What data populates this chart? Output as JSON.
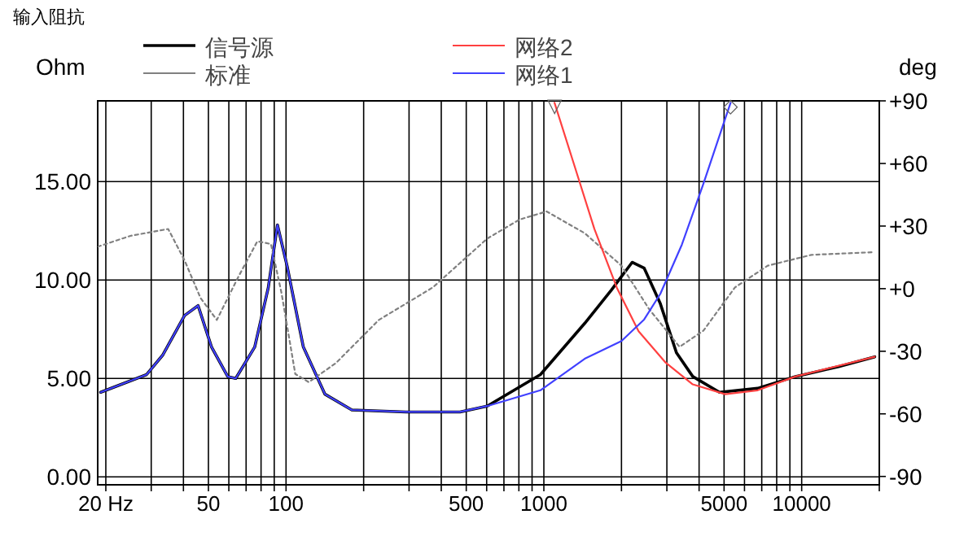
{
  "chart_data": {
    "type": "line",
    "title": "输入阻抗",
    "ylabel": "Ohm",
    "y2label": "deg",
    "log": "x",
    "grid": true,
    "legend": "top",
    "xlim": [
      18.6,
      20000
    ],
    "ylim": [
      -0.4,
      19.1
    ],
    "y2lim": [
      -94,
      90
    ],
    "xticks": [
      {
        "value": 20,
        "label": "20 Hz"
      },
      {
        "value": 30,
        "label": null
      },
      {
        "value": 40,
        "label": null
      },
      50,
      {
        "value": 60,
        "label": null
      },
      {
        "value": 70,
        "label": null
      },
      {
        "value": 80,
        "label": null
      },
      {
        "value": 90,
        "label": null
      },
      100,
      {
        "value": 200,
        "label": null
      },
      {
        "value": 300,
        "label": null
      },
      {
        "value": 400,
        "label": null
      },
      500,
      {
        "value": 600,
        "label": null
      },
      {
        "value": 700,
        "label": null
      },
      {
        "value": 800,
        "label": null
      },
      {
        "value": 900,
        "label": null
      },
      1000,
      {
        "value": 2000,
        "label": null
      },
      {
        "value": 3000,
        "label": null
      },
      {
        "value": 4000,
        "label": null
      },
      5000,
      {
        "value": 6000,
        "label": null
      },
      {
        "value": 7000,
        "label": null
      },
      {
        "value": 8000,
        "label": null
      },
      {
        "value": 9000,
        "label": null
      },
      10000,
      {
        "value": 20000,
        "label": null
      }
    ],
    "yticks": [
      {
        "value": 0,
        "label": "0.00"
      },
      {
        "value": 5,
        "label": "5.00"
      },
      {
        "value": 10,
        "label": "10.00"
      },
      {
        "value": 15,
        "label": "15.00"
      }
    ],
    "y2ticks": [
      {
        "value": 90,
        "label": "+90"
      },
      {
        "value": 60,
        "label": "+60"
      },
      {
        "value": 30,
        "label": "+30"
      },
      {
        "value": 0,
        "label": "+0"
      },
      -30,
      -60,
      -90
    ],
    "series": [
      {
        "name": "信号源",
        "color": "#000000",
        "line_style": "solid",
        "x": [
          19.1,
          28.8,
          33.3,
          40.4,
          45.6,
          51.4,
          59.4,
          63.8,
          75.6,
          85.3,
          92.6,
          101,
          116.7,
          141.6,
          180,
          292,
          473,
          603,
          970,
          1440,
          1830,
          2200,
          2450,
          2830,
          3270,
          3780,
          4800,
          6750,
          9460,
          13900,
          19200
        ],
        "values": [
          4.3,
          5.2,
          6.2,
          8.2,
          8.7,
          6.6,
          5.1,
          5.0,
          6.6,
          9.6,
          12.8,
          10.7,
          6.6,
          4.2,
          3.4,
          3.3,
          3.3,
          3.6,
          5.2,
          7.8,
          9.5,
          10.9,
          10.6,
          8.8,
          6.3,
          5.1,
          4.3,
          4.5,
          5.1,
          5.6,
          6.1
        ]
      },
      {
        "name": "标准",
        "color": "#808080",
        "line_style": "dotted",
        "axis": "y2",
        "x": [
          18.6,
          24.9,
          34.9,
          40.4,
          46.6,
          53.9,
          65.4,
          77.4,
          87.4,
          96,
          108.6,
          122.5,
          156,
          229,
          371,
          603,
          804,
          1025,
          1440,
          2000,
          2560,
          3360,
          4160,
          5510,
          7380,
          10900,
          19200
        ],
        "values": [
          20.1,
          25.3,
          28.6,
          13.6,
          -4.5,
          -15,
          5.8,
          22.7,
          21.4,
          -2,
          -40.9,
          -44.8,
          -35.7,
          -15,
          0.6,
          24,
          33.1,
          37,
          26.6,
          11,
          -9.8,
          -27.9,
          -20.1,
          0.6,
          11,
          16.2,
          17.5
        ]
      },
      {
        "name": "网络2",
        "color": "#ff4040",
        "line_style": "solid",
        "x": [
          1100,
          1300,
          1570,
          1920,
          2330,
          2970,
          3780,
          5050,
          6750,
          9460,
          19200
        ],
        "values": [
          19.0,
          16.0,
          12.6,
          9.6,
          7.4,
          5.8,
          4.7,
          4.2,
          4.4,
          5.1,
          6.1
        ]
      },
      {
        "name": "网络1",
        "color": "#4040ff",
        "line_style": "solid",
        "x": [
          19.1,
          28.8,
          33.3,
          40.4,
          45.6,
          51.4,
          59.4,
          63.8,
          75.6,
          85.3,
          92.6,
          101,
          116.7,
          141.6,
          180,
          292,
          473,
          603,
          970,
          1440,
          2000,
          2450,
          2830,
          3430,
          4160,
          5050,
          5300
        ],
        "values": [
          4.3,
          5.2,
          6.2,
          8.2,
          8.7,
          6.6,
          5.1,
          5.0,
          6.6,
          9.6,
          12.8,
          10.7,
          6.6,
          4.2,
          3.4,
          3.3,
          3.3,
          3.6,
          4.4,
          6.0,
          6.9,
          8.0,
          9.3,
          11.8,
          14.9,
          18.2,
          19.0
        ]
      }
    ],
    "annotations": [
      {
        "text": "▽",
        "x": 1100,
        "y": 19.0
      },
      {
        "text": "◇",
        "x": 5300,
        "y": 19.0
      }
    ]
  }
}
